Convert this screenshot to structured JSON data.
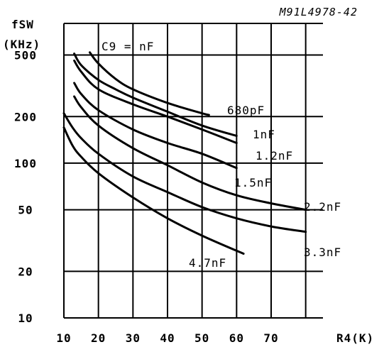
{
  "chart_data": {
    "type": "line",
    "reference": "M91L4978-42",
    "xlabel": "R4(K)",
    "ylabel_line1": "fSW",
    "ylabel_line2": "(KHz)",
    "parameter_label": "C9 = nF",
    "x_scale": "linear",
    "y_scale": "log",
    "xlim": [
      10,
      85
    ],
    "ylim": [
      10,
      800
    ],
    "grid": true,
    "x_ticks": [
      10,
      20,
      30,
      40,
      50,
      60,
      70
    ],
    "y_ticks": [
      10,
      20,
      50,
      100,
      200,
      500
    ],
    "series": [
      {
        "name": "680pF",
        "x": [
          17.5,
          20,
          25,
          30,
          40,
          50,
          52
        ],
        "y": [
          520,
          440,
          350,
          300,
          245,
          210,
          205
        ]
      },
      {
        "name": "1nF",
        "x": [
          13,
          15,
          20,
          25,
          30,
          40,
          50,
          60
        ],
        "y": [
          510,
          430,
          345,
          300,
          265,
          215,
          175,
          150
        ]
      },
      {
        "name": "1.2nF",
        "x": [
          13,
          15,
          20,
          30,
          40,
          50,
          60
        ],
        "y": [
          460,
          390,
          300,
          240,
          200,
          165,
          135
        ]
      },
      {
        "name": "1.5nF",
        "x": [
          13,
          15,
          20,
          30,
          40,
          50,
          60
        ],
        "y": [
          330,
          280,
          220,
          165,
          135,
          115,
          93
        ]
      },
      {
        "name": "2.2nF",
        "x": [
          13,
          15,
          20,
          30,
          40,
          50,
          60,
          70,
          80
        ],
        "y": [
          270,
          230,
          175,
          125,
          97,
          75,
          62,
          55,
          50
        ]
      },
      {
        "name": "3.3nF",
        "x": [
          10,
          12.5,
          15,
          20,
          30,
          40,
          50,
          60,
          70,
          80
        ],
        "y": [
          210,
          170,
          145,
          115,
          82,
          65,
          52,
          44,
          39,
          36
        ]
      },
      {
        "name": "4.7nF",
        "x": [
          10,
          12.5,
          15,
          20,
          30,
          40,
          50,
          62
        ],
        "y": [
          170,
          130,
          110,
          86,
          60,
          44,
          34,
          26
        ]
      }
    ]
  }
}
